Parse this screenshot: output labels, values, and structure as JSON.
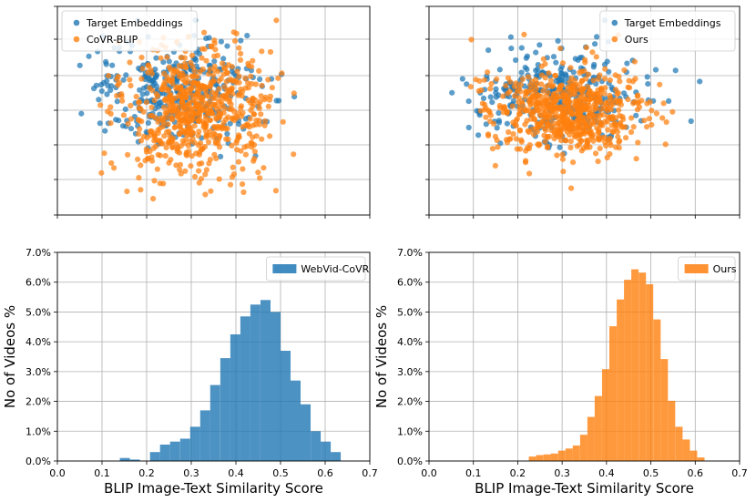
{
  "colors": {
    "blue": "#1f77b4",
    "orange": "#ff7f0e",
    "grid": "#b0b0b0",
    "frame": "#000000"
  },
  "chart_data": [
    {
      "type": "scatter",
      "title": "",
      "xlabel": "",
      "ylabel": "",
      "xlim": [
        0.0,
        0.7
      ],
      "ylim": [
        -3,
        3
      ],
      "grid": true,
      "legend_position": "top-left",
      "series": [
        {
          "name": "Target Embeddings",
          "color": "#1f77b4",
          "count": 320,
          "center": [
            0.27,
            0.55
          ],
          "spread": [
            0.09,
            0.75
          ],
          "x_range": [
            0.05,
            0.62
          ]
        },
        {
          "name": "CoVR-BLIP",
          "color": "#ff7f0e",
          "count": 650,
          "center": [
            0.31,
            -0.05
          ],
          "spread": [
            0.085,
            0.95
          ],
          "x_range": [
            0.06,
            0.6
          ]
        }
      ]
    },
    {
      "type": "scatter",
      "title": "",
      "xlabel": "",
      "ylabel": "",
      "xlim": [
        0.0,
        0.7
      ],
      "ylim": [
        -3,
        3
      ],
      "grid": true,
      "legend_position": "top-right",
      "series": [
        {
          "name": "Target Embeddings",
          "color": "#1f77b4",
          "count": 320,
          "center": [
            0.29,
            0.4
          ],
          "spread": [
            0.09,
            0.62
          ],
          "x_range": [
            0.05,
            0.61
          ]
        },
        {
          "name": "Ours",
          "color": "#ff7f0e",
          "count": 650,
          "center": [
            0.31,
            0.0
          ],
          "spread": [
            0.085,
            0.6
          ],
          "x_range": [
            0.05,
            0.6
          ]
        }
      ]
    },
    {
      "type": "bar",
      "title": "",
      "xlabel": "BLIP Image-Text Similarity Score",
      "ylabel": "No of Videos %",
      "xlim": [
        0.0,
        0.7
      ],
      "ylim": [
        0.0,
        0.07
      ],
      "xticks": [
        "0.0",
        "0.1",
        "0.2",
        "0.3",
        "0.4",
        "0.5",
        "0.6",
        "0.7"
      ],
      "yticks": [
        "0.0%",
        "1.0%",
        "2.0%",
        "3.0%",
        "4.0%",
        "5.0%",
        "6.0%",
        "7.0%"
      ],
      "grid": true,
      "legend_position": "top-right",
      "series": [
        {
          "name": "WebVid-CoVR",
          "color": "#1f77b4",
          "bin_start": 0.14,
          "bin_width": 0.0225,
          "values": [
            0.001,
            0.0005,
            0.0,
            0.003,
            0.0055,
            0.0065,
            0.0075,
            0.0115,
            0.017,
            0.0255,
            0.0345,
            0.0425,
            0.0485,
            0.0525,
            0.054,
            0.05,
            0.037,
            0.027,
            0.019,
            0.01,
            0.0065,
            0.003
          ]
        }
      ]
    },
    {
      "type": "bar",
      "title": "",
      "xlabel": "BLIP Image-Text Similarity Score",
      "ylabel": "No of Videos %",
      "xlim": [
        0.0,
        0.7
      ],
      "ylim": [
        0.0,
        0.07
      ],
      "xticks": [
        "0.0",
        "0.1",
        "0.2",
        "0.3",
        "0.4",
        "0.5",
        "0.6",
        "0.7"
      ],
      "yticks": [
        "0.0%",
        "1.0%",
        "2.0%",
        "3.0%",
        "4.0%",
        "5.0%",
        "6.0%",
        "7.0%"
      ],
      "grid": true,
      "legend_position": "top-right",
      "series": [
        {
          "name": "Ours",
          "color": "#ff7f0e",
          "bin_start": 0.225,
          "bin_width": 0.0165,
          "values": [
            0.0015,
            0.002,
            0.0022,
            0.0025,
            0.0035,
            0.0042,
            0.0052,
            0.0088,
            0.0148,
            0.0218,
            0.0308,
            0.0452,
            0.0542,
            0.0608,
            0.0643,
            0.0632,
            0.0593,
            0.0475,
            0.0342,
            0.0202,
            0.0115,
            0.0072,
            0.0035,
            0.0012
          ]
        }
      ]
    }
  ]
}
